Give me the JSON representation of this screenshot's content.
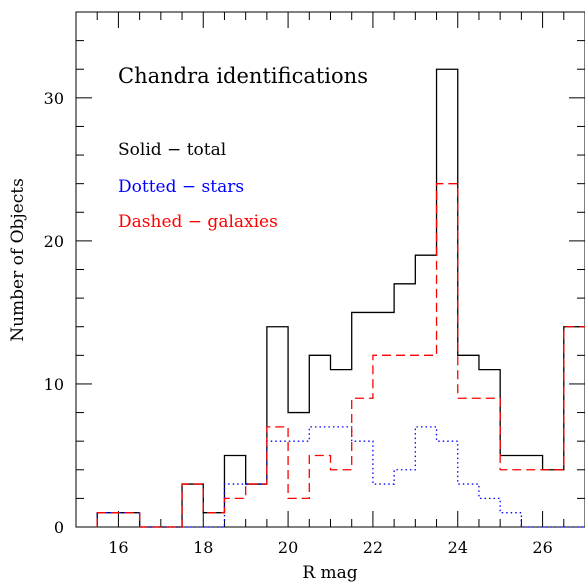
{
  "chart_data": {
    "type": "histogram-step",
    "title": "Chandra identifications",
    "xlabel": "R mag",
    "ylabel": "Number of Objects",
    "xlim": [
      15,
      27
    ],
    "ylim": [
      0,
      36
    ],
    "bin_width": 0.5,
    "x_ticks": [
      16,
      18,
      20,
      22,
      24,
      26
    ],
    "y_ticks": [
      0,
      10,
      20,
      30
    ],
    "x_tick_labels": [
      "16",
      "18",
      "20",
      "22",
      "24",
      "26"
    ],
    "y_tick_labels": [
      "0",
      "10",
      "20",
      "30"
    ],
    "legend": [
      {
        "label": "Solid − total",
        "color": "#000000"
      },
      {
        "label": "Dotted − stars",
        "color": "#0000ff"
      },
      {
        "label": "Dashed − galaxies",
        "color": "#ff0000"
      }
    ],
    "bin_edges": [
      15.5,
      16,
      16.5,
      17,
      17.5,
      18,
      18.5,
      19,
      19.5,
      20,
      20.5,
      21,
      21.5,
      22,
      22.5,
      23,
      23.5,
      24,
      24.5,
      25,
      25.5,
      26,
      26.5,
      27
    ],
    "series": [
      {
        "style": "solid",
        "color": "#000000",
        "values": [
          1,
          1,
          0,
          0,
          3,
          1,
          5,
          3,
          14,
          8,
          12,
          11,
          15,
          15,
          17,
          19,
          32,
          12,
          11,
          5,
          5,
          4,
          14
        ]
      },
      {
        "style": "dotted",
        "color": "#0000ff",
        "values": [
          1,
          1,
          0,
          0,
          0,
          0,
          3,
          3,
          6,
          6,
          7,
          7,
          6,
          3,
          4,
          7,
          6,
          3,
          2,
          1,
          0,
          0,
          0
        ]
      },
      {
        "style": "dashed",
        "color": "#ff0000",
        "values": [
          1,
          1,
          0,
          0,
          3,
          1,
          2,
          3,
          7,
          2,
          5,
          4,
          9,
          12,
          12,
          12,
          24,
          9,
          9,
          4,
          4,
          4,
          14
        ]
      }
    ]
  }
}
